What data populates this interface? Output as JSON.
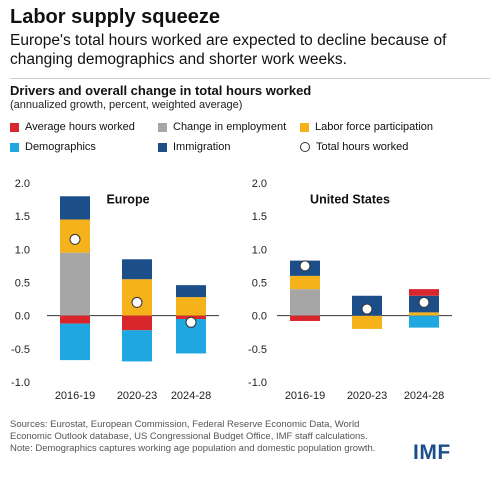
{
  "header": {
    "title": "Labor supply squeeze",
    "subtitle": "Europe's total hours worked are expected to decline because of changing demographics and shorter work weeks."
  },
  "chart_data": {
    "type": "bar",
    "title": "Drivers and overall change in total hours worked",
    "subtitle": "(annualized growth, percent, weighted average)",
    "ylim": [
      -1.0,
      2.0
    ],
    "yticks": [
      "2.0",
      "1.5",
      "1.0",
      "0.5",
      "0.0",
      "-0.5",
      "-1.0"
    ],
    "grid": false,
    "legend_position": "top",
    "legend": [
      {
        "key": "avg_hours",
        "label": "Average hours worked",
        "color": "#d9262c"
      },
      {
        "key": "employment",
        "label": "Change in employment",
        "color": "#a6a6a6"
      },
      {
        "key": "participation",
        "label": "Labor force participation",
        "color": "#f5b21a"
      },
      {
        "key": "demographics",
        "label": "Demographics",
        "color": "#1ea7e1"
      },
      {
        "key": "immigration",
        "label": "Immigration",
        "color": "#1c4e8a"
      },
      {
        "key": "total",
        "label": "Total hours worked",
        "color": "#ffffff"
      }
    ],
    "panels": [
      {
        "name": "Europe",
        "categories": [
          "2016-19",
          "2020-23",
          "2024-28"
        ],
        "series": [
          {
            "key": "employment",
            "values": [
              0.95,
              0.0,
              0.0
            ]
          },
          {
            "key": "participation",
            "values": [
              0.5,
              0.55,
              0.28
            ]
          },
          {
            "key": "immigration",
            "values": [
              0.35,
              0.3,
              0.18
            ]
          },
          {
            "key": "avg_hours",
            "values": [
              -0.12,
              -0.22,
              -0.05
            ]
          },
          {
            "key": "demographics",
            "values": [
              -0.55,
              -0.47,
              -0.52
            ]
          }
        ],
        "total": [
          1.15,
          0.2,
          -0.1
        ]
      },
      {
        "name": "United States",
        "categories": [
          "2016-19",
          "2020-23",
          "2024-28"
        ],
        "series": [
          {
            "key": "employment",
            "values": [
              0.4,
              0.0,
              0.0
            ]
          },
          {
            "key": "participation",
            "values": [
              0.2,
              -0.2,
              0.05
            ]
          },
          {
            "key": "immigration",
            "values": [
              0.23,
              0.3,
              0.25
            ]
          },
          {
            "key": "avg_hours",
            "values": [
              -0.08,
              0.0,
              0.1
            ]
          },
          {
            "key": "demographics",
            "values": [
              0.0,
              0.0,
              -0.18
            ]
          }
        ],
        "total": [
          0.75,
          0.1,
          0.2
        ]
      }
    ]
  },
  "footer": {
    "sources": "Sources: Eurostat, European Commission, Federal Reserve Economic Data, World Economic Outlook database, US Congressional Budget Office, IMF staff calculations.",
    "note": "Note: Demographics captures working age population and domestic population growth.",
    "logo": "IMF"
  }
}
